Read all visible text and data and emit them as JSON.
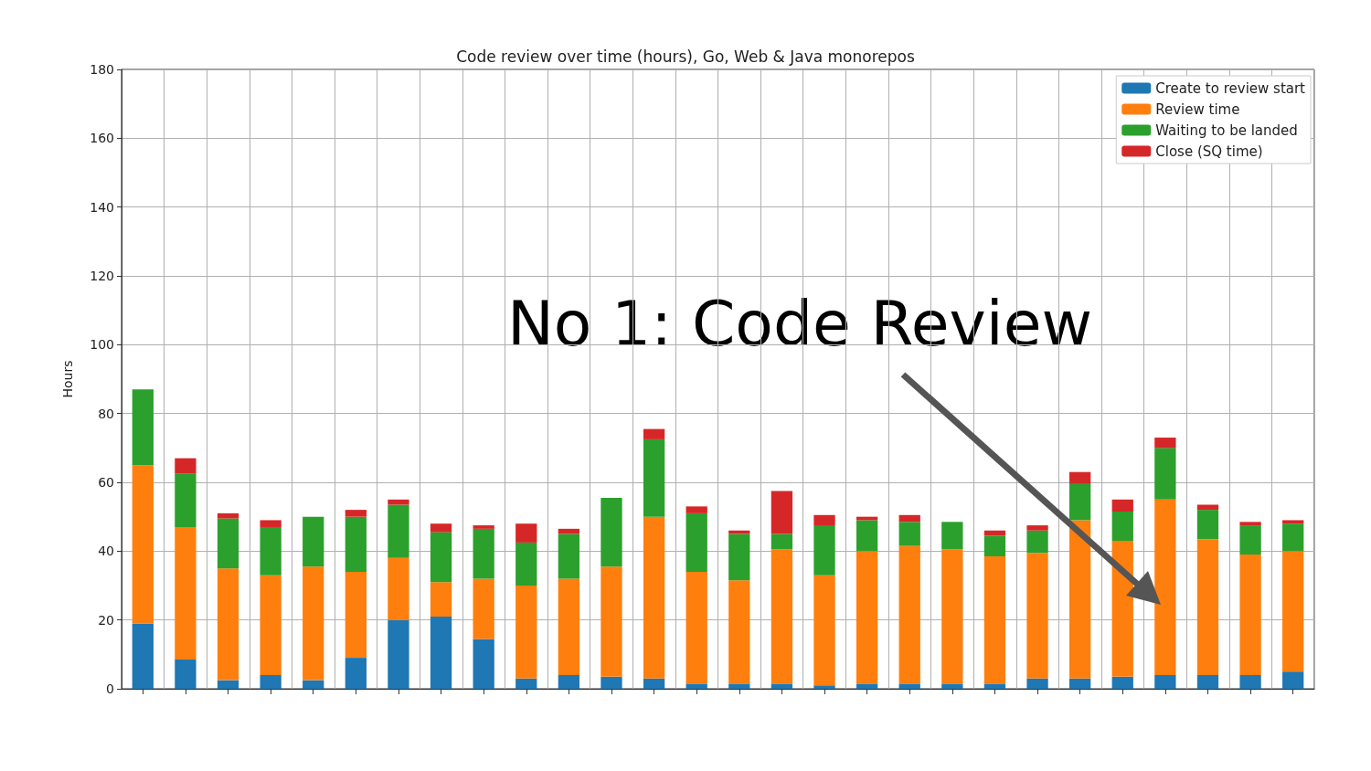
{
  "chart_data": {
    "type": "bar",
    "title": "Code review over time (hours), Go, Web & Java monorepos",
    "ylabel": "Hours",
    "stacked": true,
    "categories": [
      null,
      null,
      null,
      null,
      null,
      null,
      null,
      null,
      null,
      null,
      null,
      null,
      null,
      null,
      null,
      null,
      null,
      null,
      null,
      null,
      null,
      null,
      null,
      null,
      null,
      null,
      null,
      null
    ],
    "series": [
      {
        "name": "Create to review start",
        "color": "#1f77b4",
        "values": [
          19,
          8.5,
          2.5,
          4,
          2.5,
          9,
          20,
          21,
          14.5,
          3,
          4,
          3.5,
          3,
          1.5,
          1.5,
          1.5,
          1,
          1.5,
          1.5,
          1.5,
          1.5,
          3,
          3,
          3.5,
          4,
          4,
          4,
          5
        ]
      },
      {
        "name": "Review time",
        "color": "#ff7f0e",
        "values": [
          46,
          38.5,
          32.5,
          29,
          33,
          25,
          18,
          10,
          17.5,
          27,
          28,
          32,
          47,
          32.5,
          30,
          39,
          32,
          38.5,
          40,
          39,
          37,
          36.5,
          46,
          39.5,
          51,
          39.5,
          35,
          35
        ]
      },
      {
        "name": "Waiting to be landed",
        "color": "#2ca02c",
        "values": [
          22,
          15.5,
          14.5,
          14,
          14.5,
          16,
          15.5,
          14.5,
          14.5,
          12.5,
          13,
          20,
          22.5,
          17,
          13.5,
          4.5,
          14.5,
          9,
          7,
          8,
          6,
          6.5,
          10.5,
          8.5,
          15,
          8.5,
          8.5,
          8
        ]
      },
      {
        "name": "Close (SQ time)",
        "color": "#d62728",
        "values": [
          0,
          4.5,
          1.5,
          2,
          0,
          2,
          1.5,
          2.5,
          1,
          5.5,
          1.5,
          0,
          3,
          2,
          1,
          12.5,
          3,
          1,
          2,
          0,
          1.5,
          1.5,
          3.5,
          3.5,
          3,
          1.5,
          1,
          1
        ]
      }
    ],
    "ylim": [
      0,
      180
    ],
    "yticks": [
      0,
      20,
      40,
      60,
      80,
      100,
      120,
      140,
      160,
      180
    ],
    "grid": true,
    "legend": "top right",
    "annotations": [
      "No 1: Code Review"
    ]
  }
}
